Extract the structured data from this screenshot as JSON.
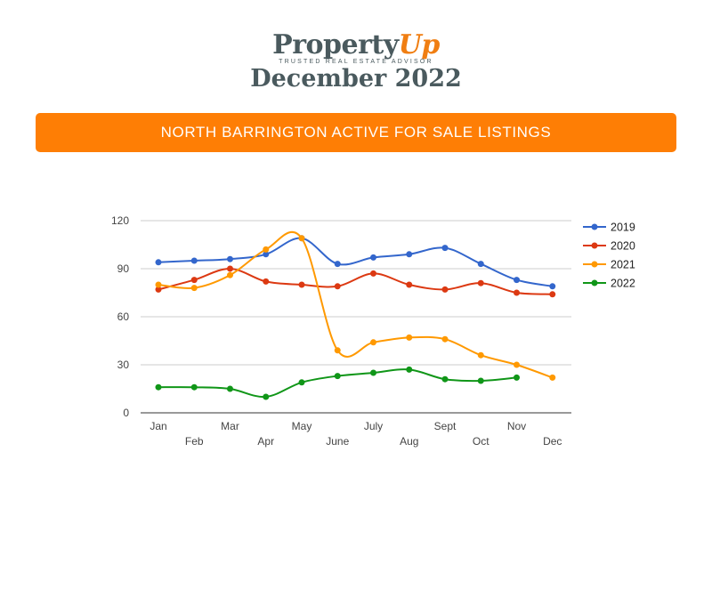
{
  "logo": {
    "name_main": "Property",
    "name_accent": "Up",
    "tagline": "TRUSTED REAL ESTATE ADVISOR",
    "date": "December 2022"
  },
  "banner": {
    "title": "NORTH BARRINGTON ACTIVE FOR SALE LISTINGS"
  },
  "colors": {
    "banner": "#fe7e05",
    "logo_text": "#4a5a5e",
    "logo_accent": "#f07e12"
  },
  "chart_data": {
    "type": "line",
    "categories": [
      "Jan",
      "Feb",
      "Mar",
      "Apr",
      "May",
      "June",
      "July",
      "Aug",
      "Sept",
      "Oct",
      "Nov",
      "Dec"
    ],
    "ylim": [
      0,
      120
    ],
    "yticks": [
      0,
      30,
      60,
      90,
      120
    ],
    "grid": true,
    "smooth": true,
    "legend": "right",
    "series": [
      {
        "name": "2019",
        "color": "#3366cc",
        "values": [
          94,
          95,
          96,
          99,
          109,
          93,
          97,
          99,
          103,
          93,
          83,
          79
        ]
      },
      {
        "name": "2020",
        "color": "#dc3912",
        "values": [
          77,
          83,
          90,
          82,
          80,
          79,
          87,
          80,
          77,
          81,
          75,
          74
        ]
      },
      {
        "name": "2021",
        "color": "#ff9900",
        "values": [
          80,
          78,
          86,
          102,
          109,
          39,
          44,
          47,
          46,
          36,
          30,
          22
        ]
      },
      {
        "name": "2022",
        "color": "#109618",
        "values": [
          16,
          16,
          15,
          10,
          19,
          23,
          25,
          27,
          21,
          20,
          22,
          null
        ]
      }
    ]
  }
}
